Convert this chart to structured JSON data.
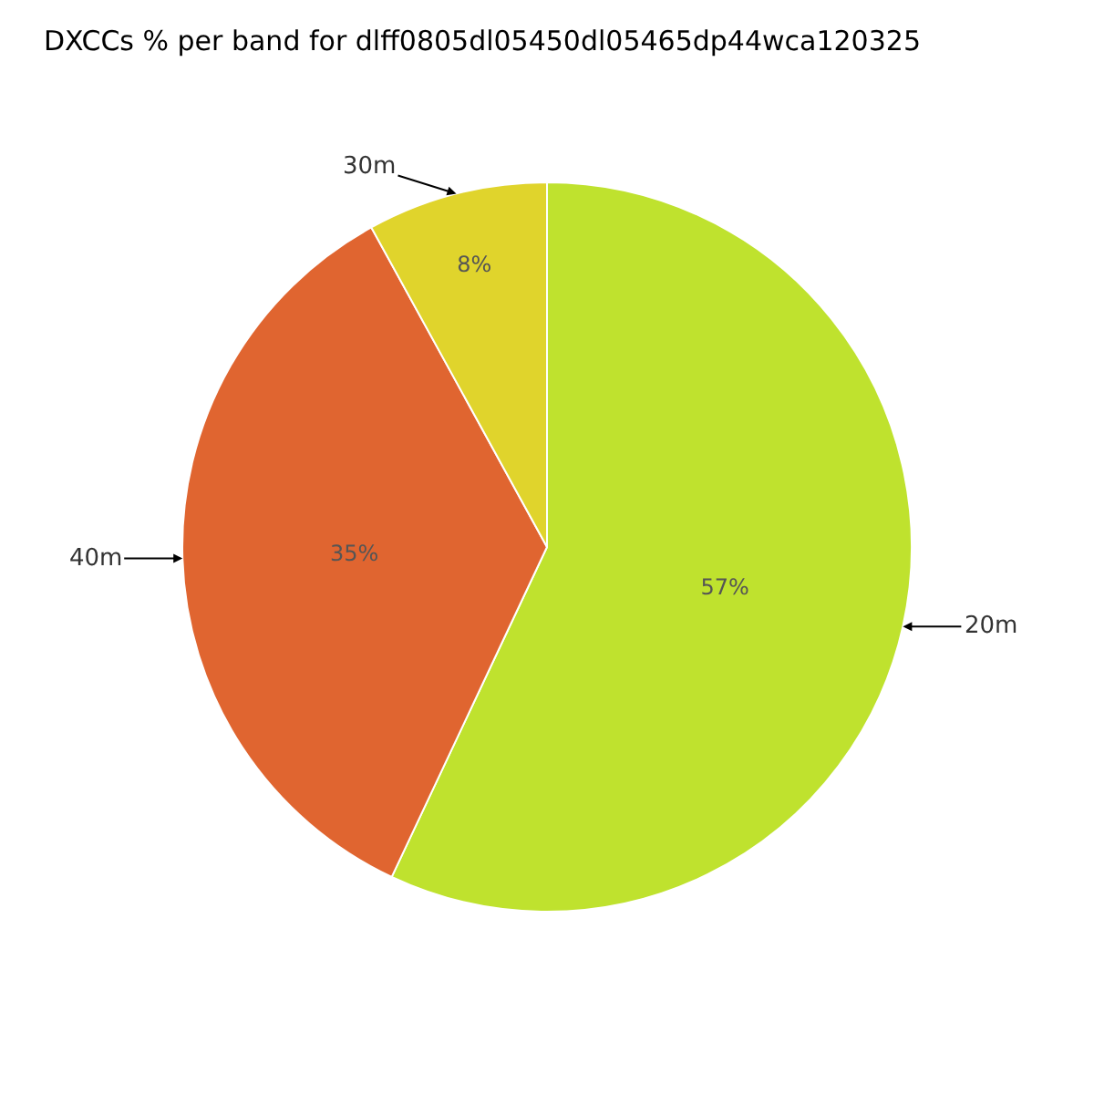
{
  "chart_data": {
    "type": "pie",
    "title": "DXCCs % per band for dlff0805dl05450dl05465dp44wca120325",
    "categories": [
      "20m",
      "40m",
      "30m"
    ],
    "values": [
      57,
      35,
      8
    ],
    "colors": [
      "#bfe22e",
      "#e06530",
      "#e0d42c"
    ],
    "value_labels": [
      "57%",
      "35%",
      "8%"
    ],
    "legend": false
  }
}
